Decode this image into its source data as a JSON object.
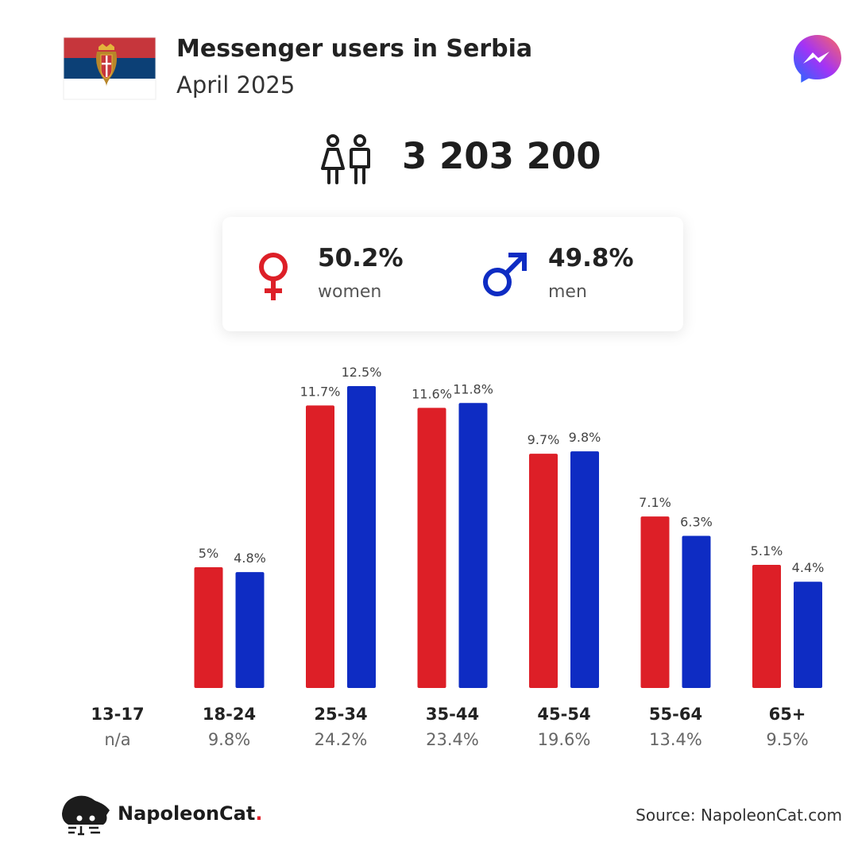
{
  "header": {
    "title": "Messenger users in Serbia",
    "subtitle": "April 2025"
  },
  "total_users": "3 203 200",
  "gender": {
    "women": {
      "pct": "50.2%",
      "label": "women"
    },
    "men": {
      "pct": "49.8%",
      "label": "men"
    }
  },
  "colors": {
    "women": "#dd1f27",
    "men": "#0e2cc3",
    "flag_red": "#c6363c",
    "flag_blue": "#0c4076"
  },
  "chart_data": {
    "type": "bar",
    "categories": [
      "13-17",
      "18-24",
      "25-34",
      "35-44",
      "45-54",
      "55-64",
      "65+"
    ],
    "category_totals": [
      "n/a",
      "9.8%",
      "24.2%",
      "23.4%",
      "19.6%",
      "13.4%",
      "9.5%"
    ],
    "series": [
      {
        "values": [
          null,
          5,
          11.7,
          11.6,
          9.7,
          7.1,
          5.1
        ],
        "labels": [
          "",
          "5%",
          "11.7%",
          "11.6%",
          "9.7%",
          "7.1%",
          "5.1%"
        ],
        "color": "#dd1f27"
      },
      {
        "values": [
          null,
          4.8,
          12.5,
          11.8,
          9.8,
          6.3,
          4.4
        ],
        "labels": [
          "",
          "4.8%",
          "12.5%",
          "11.8%",
          "9.8%",
          "6.3%",
          "4.4%"
        ],
        "color": "#0e2cc3"
      }
    ],
    "ylim": [
      0,
      13
    ],
    "grid": false,
    "legend": "none"
  },
  "footer": {
    "brand": "NapoleonCat",
    "brand_dot": ".",
    "source": "Source: NapoleonCat.com"
  },
  "icons": {
    "flag": "serbia-flag-icon",
    "app": "messenger-logo-icon",
    "people": "people-icon",
    "female": "female-symbol-icon",
    "male": "male-symbol-icon",
    "brand": "napoleoncat-logo-icon"
  }
}
